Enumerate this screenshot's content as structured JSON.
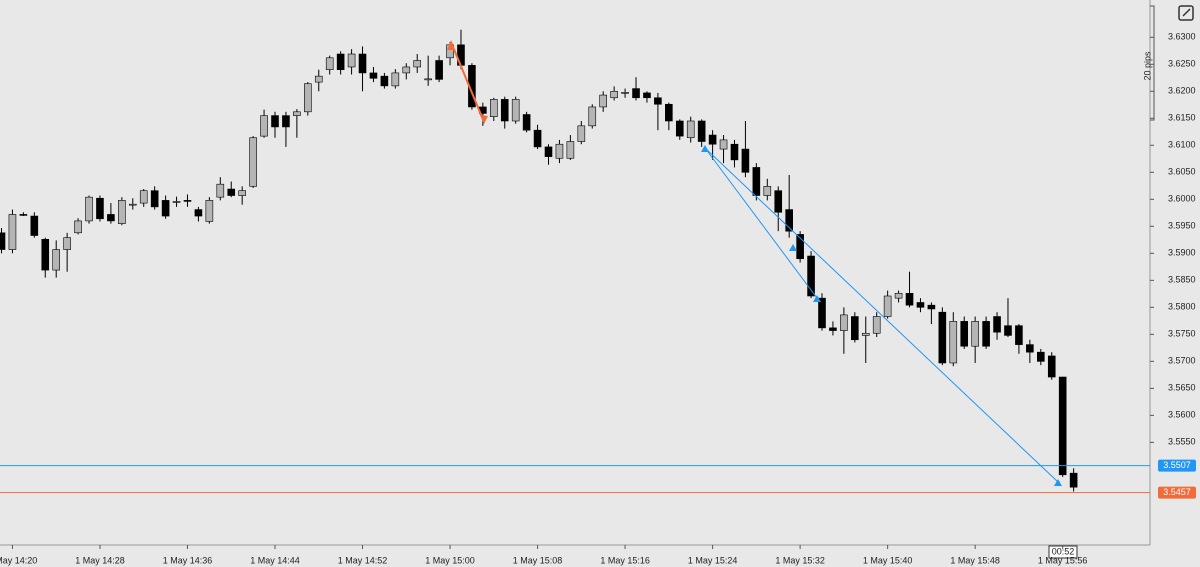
{
  "chart_data": {
    "type": "candlestick",
    "categories": [
      null,
      "1 May 14:20",
      null,
      null,
      null,
      null,
      null,
      null,
      null,
      "1 May 14:28",
      null,
      null,
      null,
      null,
      null,
      null,
      null,
      "1 May 14:36",
      null,
      null,
      null,
      null,
      null,
      null,
      null,
      "1 May 14:44",
      null,
      null,
      null,
      null,
      null,
      null,
      null,
      "1 May 14:52",
      null,
      null,
      null,
      null,
      null,
      null,
      null,
      "1 May 15:00",
      null,
      null,
      null,
      null,
      null,
      null,
      null,
      "1 May 15:08",
      null,
      null,
      null,
      null,
      null,
      null,
      null,
      "1 May 15:16",
      null,
      null,
      null,
      null,
      null,
      null,
      null,
      "1 May 15:24",
      null,
      null,
      null,
      null,
      null,
      null,
      null,
      "1 May 15:32",
      null,
      null,
      null,
      null,
      null,
      null,
      null,
      "1 May 15:40",
      null,
      null,
      null,
      null,
      null,
      null,
      null,
      "1 May 15:48",
      null,
      null,
      null,
      null,
      null,
      null,
      null,
      "1 May 15:56",
      null
    ],
    "open": [
      3.5938,
      3.5907,
      3.5972,
      3.5969,
      3.5926,
      3.5869,
      3.5907,
      3.5938,
      3.596,
      3.6002,
      3.5972,
      3.5955,
      3.599,
      3.5993,
      3.6016,
      3.5998,
      3.5995,
      3.5998,
      3.5981,
      3.5959,
      3.6004,
      3.6019,
      3.6007,
      3.6024,
      3.6117,
      3.6155,
      3.6155,
      3.6155,
      3.6162,
      3.6217,
      3.624,
      3.6269,
      3.6245,
      3.6269,
      3.6234,
      3.6228,
      3.621,
      3.6234,
      3.6245,
      3.6222,
      3.6257,
      3.6262,
      3.6286,
      3.6248,
      3.6171,
      3.6153,
      3.6185,
      3.6145,
      3.6157,
      3.6128,
      3.6097,
      3.6076,
      3.6076,
      3.6107,
      3.6136,
      3.6171,
      3.6188,
      3.6197,
      3.6205,
      3.6197,
      3.6188,
      3.6176,
      3.6145,
      3.6114,
      3.6145,
      3.6119,
      3.6093,
      3.6102,
      3.6093,
      3.6059,
      3.6007,
      3.6016,
      3.5981,
      3.5935,
      3.5895,
      3.5817,
      3.5762,
      3.5757,
      3.5783,
      3.5748,
      3.5752,
      3.5783,
      3.5817,
      3.5826,
      3.5809,
      3.5804,
      3.5791,
      3.5697,
      3.5774,
      3.5728,
      3.5774,
      3.5783,
      3.5766,
      3.5766,
      3.5731,
      3.5717,
      3.571,
      3.5671,
      3.5493
    ],
    "high": [
      3.5947,
      3.5981,
      3.5976,
      3.5976,
      3.5929,
      3.5924,
      3.5938,
      3.5965,
      3.6007,
      3.6007,
      3.5993,
      3.6004,
      3.6002,
      3.6019,
      3.6024,
      3.6007,
      3.6005,
      3.6009,
      3.5986,
      3.6004,
      3.6041,
      3.6033,
      3.6024,
      3.6117,
      3.6166,
      3.6162,
      3.6162,
      3.6167,
      3.6217,
      3.624,
      3.6266,
      3.6274,
      3.6278,
      3.6283,
      3.6245,
      3.6234,
      3.6241,
      3.6252,
      3.6269,
      3.6266,
      3.6266,
      3.6291,
      3.6314,
      3.6252,
      3.6179,
      3.6188,
      3.619,
      3.619,
      3.6162,
      3.6138,
      3.6102,
      3.611,
      3.6119,
      3.6145,
      3.6176,
      3.62,
      3.6209,
      3.6205,
      3.6226,
      3.62,
      3.6197,
      3.6179,
      3.6148,
      3.6153,
      3.6148,
      3.6128,
      3.6119,
      3.611,
      3.6145,
      3.6067,
      3.6038,
      3.6024,
      3.6045,
      3.5941,
      3.5904,
      3.5826,
      3.5774,
      3.58,
      3.5791,
      3.5783,
      3.5791,
      3.5831,
      3.5831,
      3.5866,
      3.5817,
      3.5809,
      3.58,
      3.5791,
      3.5783,
      3.5783,
      3.5783,
      3.5791,
      3.5817,
      3.5769,
      3.574,
      3.5723,
      3.5717,
      3.5671,
      3.5502
    ],
    "low": [
      3.59,
      3.59,
      3.5969,
      3.5929,
      3.5855,
      3.5855,
      3.5866,
      3.5935,
      3.5955,
      3.5959,
      3.5955,
      3.5952,
      3.5981,
      3.5986,
      3.5981,
      3.5964,
      3.5986,
      3.5986,
      3.5959,
      3.5955,
      3.5998,
      3.6004,
      3.599,
      3.6021,
      3.6114,
      3.6114,
      3.6097,
      3.6114,
      3.6155,
      3.62,
      3.6231,
      3.6231,
      3.6231,
      3.62,
      3.6217,
      3.6205,
      3.6205,
      3.6222,
      3.6234,
      3.621,
      3.6217,
      3.6248,
      3.6241,
      3.6166,
      3.6136,
      3.6145,
      3.6131,
      3.614,
      3.6124,
      3.6093,
      3.6064,
      3.6067,
      3.6073,
      3.6102,
      3.6131,
      3.6162,
      3.6183,
      3.6188,
      3.6183,
      3.6179,
      3.6128,
      3.6128,
      3.611,
      3.6105,
      3.6097,
      3.6073,
      3.6067,
      3.6059,
      3.6041,
      3.5998,
      3.5998,
      3.5941,
      3.5929,
      3.5883,
      3.5817,
      3.5757,
      3.5748,
      3.5714,
      3.5735,
      3.5697,
      3.5745,
      3.5779,
      3.5809,
      3.58,
      3.5791,
      3.5769,
      3.5693,
      3.5691,
      3.5723,
      3.5697,
      3.5723,
      3.574,
      3.5745,
      3.5714,
      3.5697,
      3.5693,
      3.5666,
      3.5486,
      3.5459
    ],
    "close": [
      3.5907,
      3.5972,
      3.5971,
      3.5933,
      3.5869,
      3.5907,
      3.5929,
      3.596,
      3.6004,
      3.5964,
      3.596,
      3.5998,
      3.5991,
      3.6016,
      3.5986,
      3.5969,
      3.5996,
      3.5997,
      3.5969,
      3.5998,
      3.6028,
      3.6007,
      3.6016,
      3.6114,
      3.6155,
      3.6134,
      3.6134,
      3.6162,
      3.6214,
      3.6228,
      3.6262,
      3.624,
      3.6269,
      3.6234,
      3.6224,
      3.621,
      3.6234,
      3.6245,
      3.6257,
      3.6223,
      3.6222,
      3.6286,
      3.6248,
      3.6171,
      3.6159,
      3.6185,
      3.6145,
      3.6185,
      3.6128,
      3.6097,
      3.6079,
      3.6102,
      3.6107,
      3.6136,
      3.6171,
      3.6193,
      3.62,
      3.6198,
      3.6188,
      3.6188,
      3.6176,
      3.6145,
      3.6117,
      3.6145,
      3.6107,
      3.6102,
      3.611,
      3.6073,
      3.605,
      3.6007,
      3.6024,
      3.5976,
      3.5941,
      3.589,
      3.5821,
      3.5762,
      3.5757,
      3.5786,
      3.574,
      3.5752,
      3.5783,
      3.5821,
      3.5826,
      3.5804,
      3.58,
      3.5797,
      3.5697,
      3.5774,
      3.5728,
      3.5774,
      3.5728,
      3.5754,
      3.5748,
      3.5731,
      3.5717,
      3.57,
      3.5671,
      3.549,
      3.5467
    ],
    "bull_color": "#b5b5b5",
    "bear_color": "#000000",
    "ylim": [
      3.536,
      3.6369
    ],
    "yticks": [
      {
        "value": 3.555,
        "label": "3.5550"
      },
      {
        "value": 3.56,
        "label": "3.5600"
      },
      {
        "value": 3.565,
        "label": "3.5650"
      },
      {
        "value": 3.57,
        "label": "3.5700"
      },
      {
        "value": 3.575,
        "label": "3.5750"
      },
      {
        "value": 3.58,
        "label": "3.5800"
      },
      {
        "value": 3.585,
        "label": "3.5850"
      },
      {
        "value": 3.59,
        "label": "3.5900"
      },
      {
        "value": 3.595,
        "label": "3.5950"
      },
      {
        "value": 3.6,
        "label": "3.6000"
      },
      {
        "value": 3.605,
        "label": "3.6050"
      },
      {
        "value": 3.61,
        "label": "3.6100"
      },
      {
        "value": 3.615,
        "label": "3.6150"
      },
      {
        "value": 3.62,
        "label": "3.6200"
      },
      {
        "value": 3.625,
        "label": "3.6250"
      },
      {
        "value": 3.63,
        "label": "3.6300"
      }
    ],
    "price_lines": [
      {
        "value": 3.5507,
        "color": "#2196f3"
      },
      {
        "value": 3.5457,
        "color": "#f26b3a"
      }
    ],
    "scale_label": "20 pips",
    "countdown": "00:52"
  }
}
